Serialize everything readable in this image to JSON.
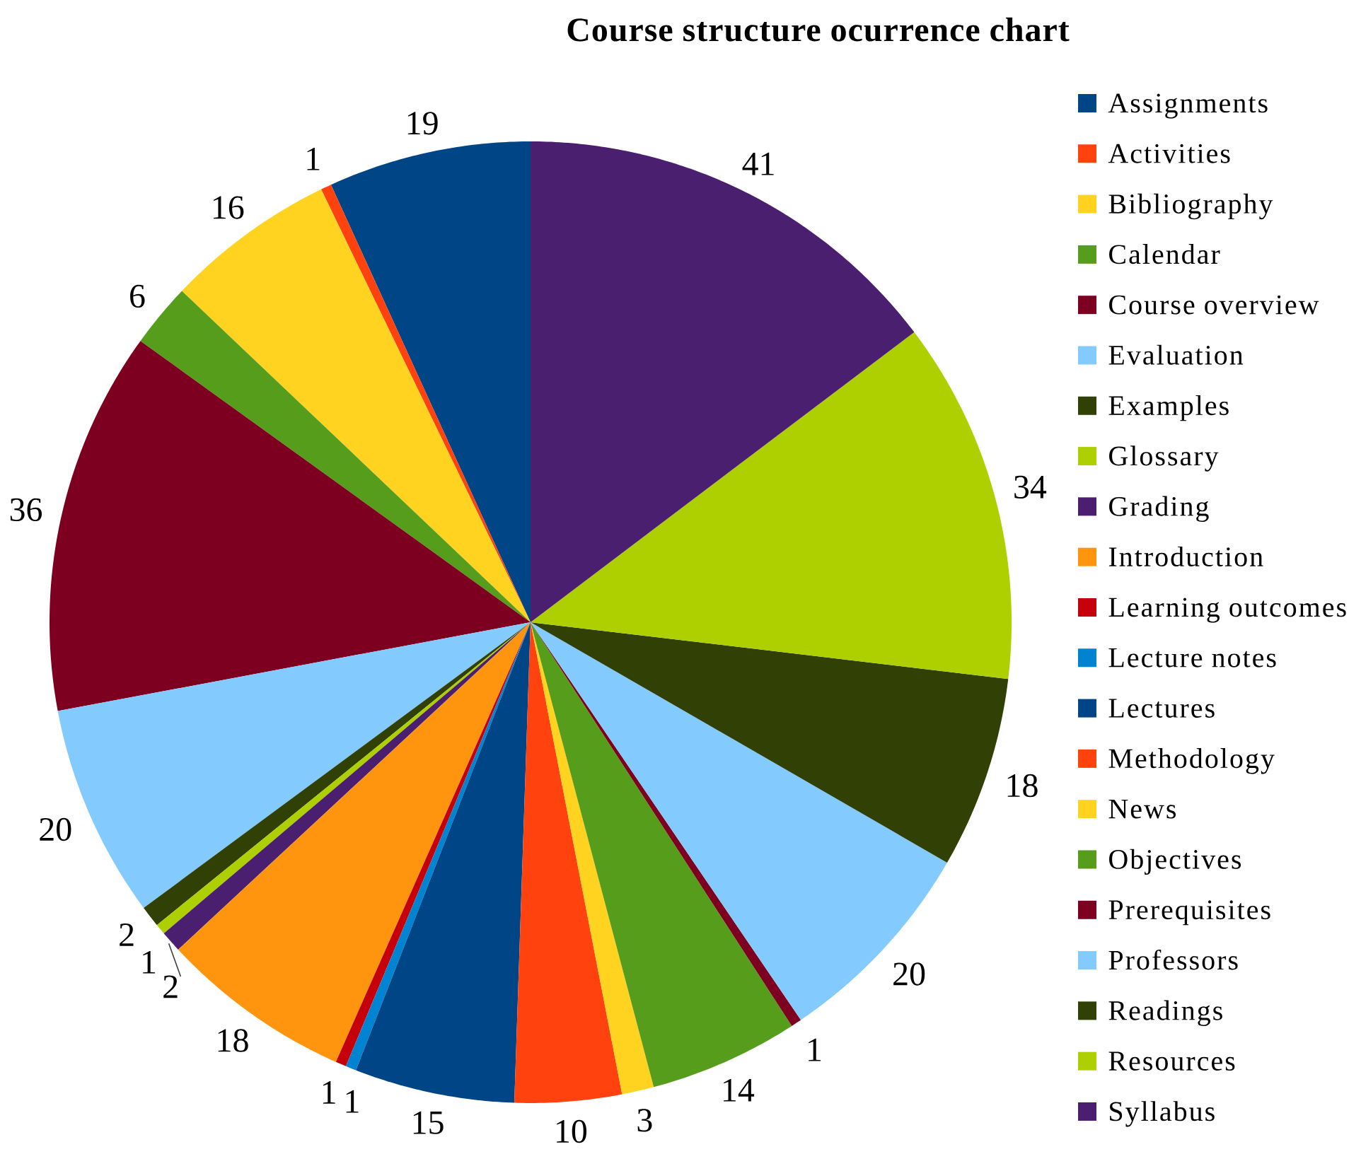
{
  "chart_data": {
    "type": "pie",
    "title": "Course structure ocurrence chart",
    "categories": [
      "Assignments",
      "Activities",
      "Bibliography",
      "Calendar",
      "Course overview",
      "Evaluation",
      "Examples",
      "Glossary",
      "Grading",
      "Introduction",
      "Learning outcomes",
      "Lecture notes",
      "Lectures",
      "Methodology",
      "News",
      "Objectives",
      "Prerequisites",
      "Professors",
      "Readings",
      "Resources",
      "Syllabus"
    ],
    "values": [
      19,
      1,
      16,
      6,
      36,
      20,
      2,
      1,
      2,
      18,
      1,
      1,
      15,
      10,
      3,
      14,
      1,
      20,
      18,
      34,
      41
    ],
    "colors": [
      "#004586",
      "#ff420e",
      "#ffd320",
      "#579d1c",
      "#7e0021",
      "#83caff",
      "#314004",
      "#aecf00",
      "#4b1f6f",
      "#ff950e",
      "#c5000b",
      "#0084d1",
      "#004586",
      "#ff420e",
      "#ffd320",
      "#579d1c",
      "#7e0021",
      "#83caff",
      "#314004",
      "#aecf00",
      "#4b1f6f"
    ],
    "data_labels": true,
    "legend": "right"
  }
}
